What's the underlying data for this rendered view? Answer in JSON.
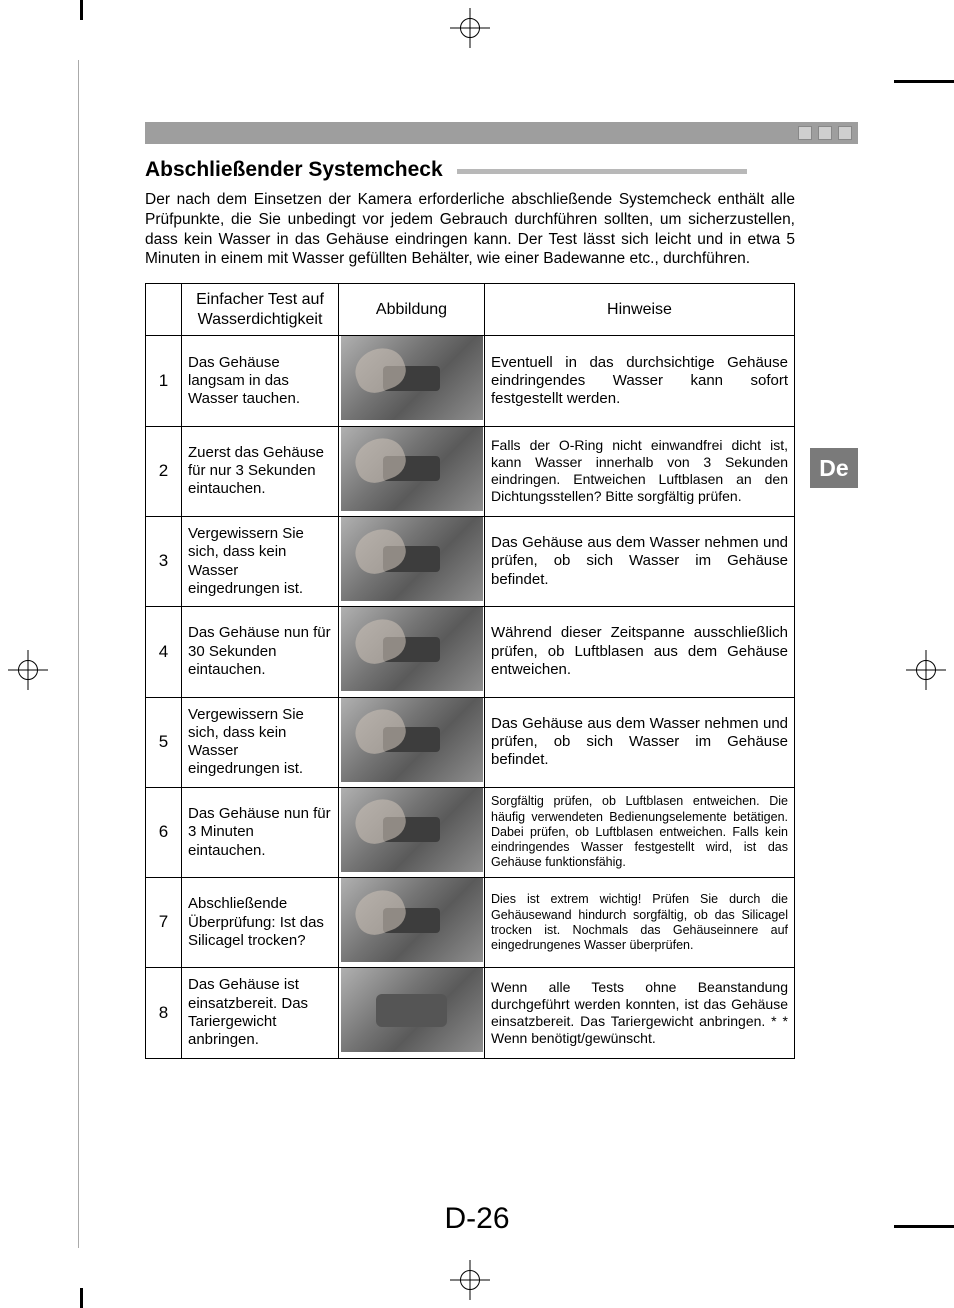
{
  "lang_tab": "De",
  "page_number": "D-26",
  "heading": "Abschließender Systemcheck",
  "intro": "Der nach dem Einsetzen der Kamera erforderliche abschließende Systemcheck enthält alle Prüfpunkte, die Sie unbedingt vor jedem Gebrauch durchführen sollten, um sicherzustellen, dass kein Wasser in das Gehäuse eindringen kann. Der Test lässt sich leicht und in etwa 5 Minuten in einem mit Wasser gefüllten Behälter, wie einer Badewanne etc., durchführen.",
  "table": {
    "headers": {
      "step": "Einfacher Test auf Wasserdichtigkeit",
      "image": "Abbildung",
      "hint": "Hinweise"
    },
    "rows": [
      {
        "num": "1",
        "step": "Das Gehäuse langsam in das Wasser tauchen.",
        "hint": "Eventuell in das durchsichtige Gehäuse eindringendes Wasser kann sofort festgestellt werden.",
        "hint_class": ""
      },
      {
        "num": "2",
        "step": "Zuerst das Gehäuse für nur 3 Sekunden eintauchen.",
        "hint": "Falls der O-Ring nicht einwandfrei dicht ist, kann Wasser innerhalb von 3 Sekunden eindringen. Entweichen Luftblasen an den Dichtungsstellen? Bitte sorgfältig prüfen.",
        "hint_class": "med"
      },
      {
        "num": "3",
        "step": "Vergewissern Sie sich, dass kein Wasser eingedrungen ist.",
        "hint": "Das Gehäuse aus dem Wasser nehmen und prüfen, ob sich Wasser im Gehäuse befindet.",
        "hint_class": ""
      },
      {
        "num": "4",
        "step": "Das Gehäuse nun für 30 Sekunden eintauchen.",
        "hint": "Während dieser Zeitspanne ausschließlich prüfen, ob Luftblasen aus dem Gehäuse entweichen.",
        "hint_class": ""
      },
      {
        "num": "5",
        "step": "Vergewissern Sie sich, dass kein Wasser eingedrungen ist.",
        "hint": "Das Gehäuse aus dem Wasser nehmen und prüfen, ob sich Wasser im Gehäuse befindet.",
        "hint_class": ""
      },
      {
        "num": "6",
        "step": "Das Gehäuse nun für 3 Minuten eintauchen.",
        "hint": "Sorgfältig prüfen, ob Luftblasen entweichen. Die häufig verwendeten Bedienungselemente betätigen. Dabei prüfen, ob Luftblasen entweichen. Falls kein eindringendes Wasser festgestellt wird, ist das Gehäuse funktionsfähig.",
        "hint_class": "small"
      },
      {
        "num": "7",
        "step": "Abschließende Überprüfung: Ist das Silicagel trocken?",
        "hint": "Dies ist extrem wichtig! Prüfen Sie durch die Gehäusewand hindurch sorgfältig, ob das Silicagel trocken ist. Nochmals das Gehäuseinnere auf eingedrungenes Wasser überprüfen.",
        "hint_class": "small"
      },
      {
        "num": "8",
        "step": "Das Gehäuse ist einsatzbereit. Das Tariergewicht anbringen.",
        "hint": "Wenn alle Tests ohne Beanstandung durchgeführt werden konnten, ist das Gehäuse einsatzbereit. Das Tariergewicht anbringen. *\n* Wenn benötigt/gewünscht.",
        "hint_class": "med",
        "thumb_class": "final"
      }
    ]
  }
}
